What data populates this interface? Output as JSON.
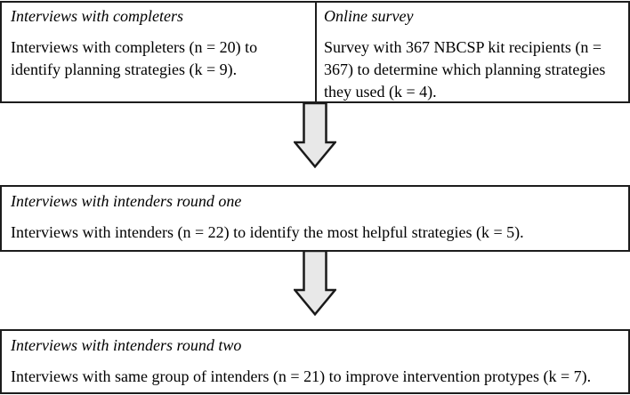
{
  "diagram": {
    "top_row": {
      "left_cell": {
        "heading": "Interviews with completers",
        "body_lines": [
          "Interviews with completers (n = 20) to",
          "identify planning strategies (k = 9)."
        ]
      },
      "right_cell": {
        "heading": "Online survey",
        "body_lines": [
          "Survey with 367 NBCSP kit recipients (n =",
          "367) to determine which planning strategies",
          "they used (k = 4)."
        ]
      }
    },
    "middle_box": {
      "heading": "Interviews with intenders round one",
      "body": "Interviews with intenders (n = 22) to identify the most helpful strategies (k = 5)."
    },
    "bottom_box": {
      "heading": "Interviews with intenders round two",
      "body": "Interviews with same group of intenders (n = 21) to improve intervention protypes (k = 7)."
    }
  },
  "icons": {
    "arrow_1": "block-down-arrow",
    "arrow_2": "block-down-arrow"
  },
  "colors": {
    "background": "#ffffff",
    "text": "#000000",
    "border": "#1c1c1c",
    "arrow_fill": "#e8e8e8",
    "arrow_stroke": "#1a1a1a"
  }
}
